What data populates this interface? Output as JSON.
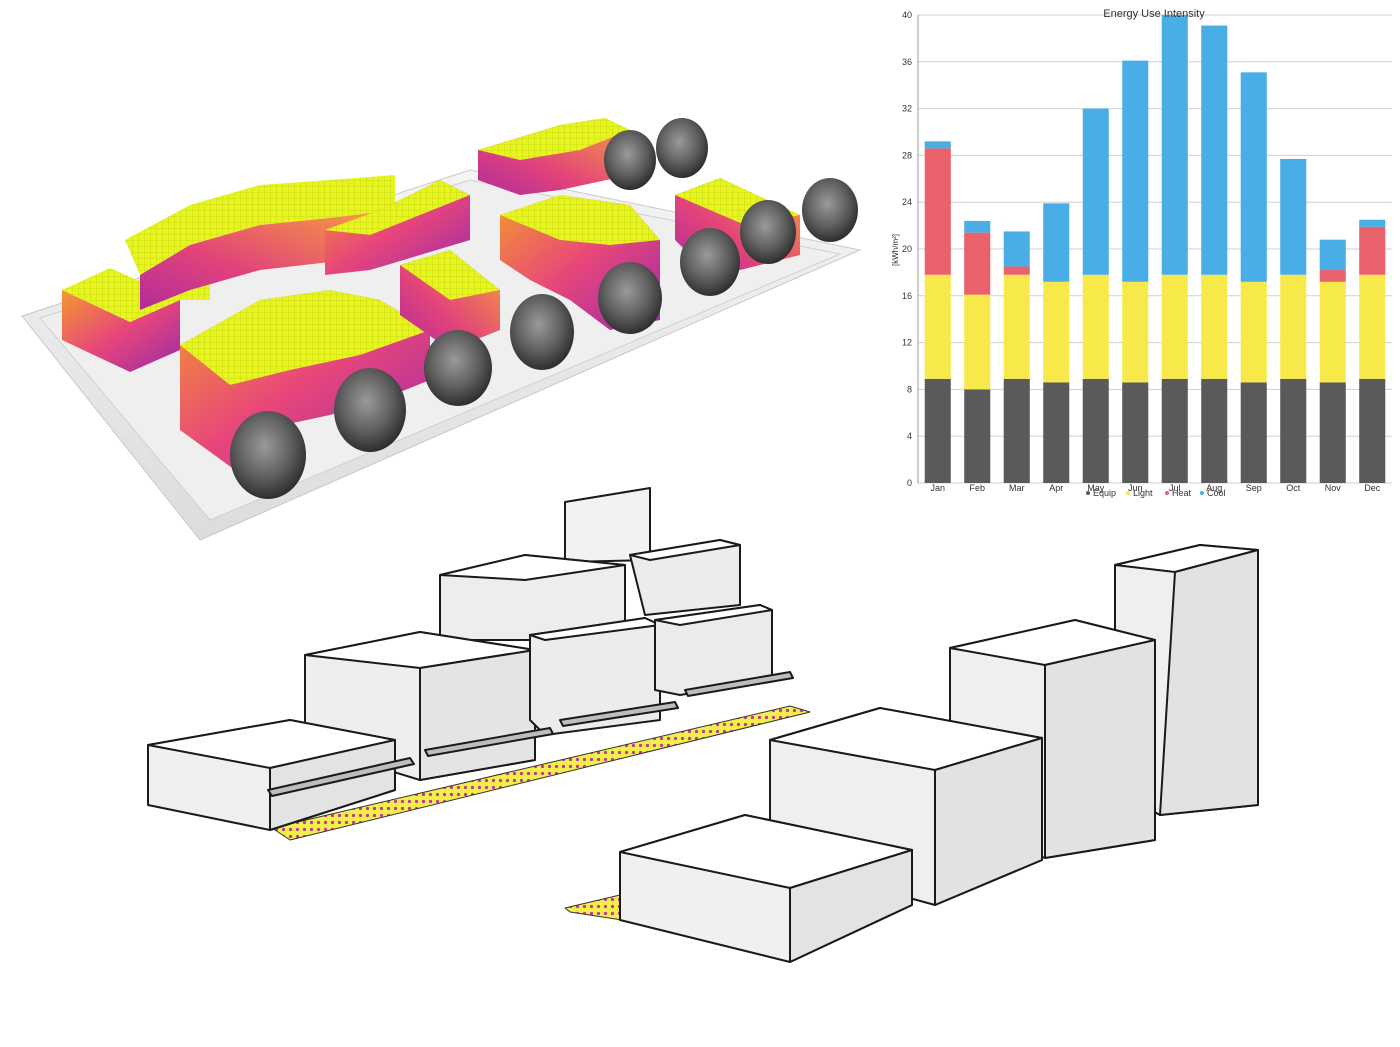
{
  "chart_data": {
    "type": "bar",
    "stacked": true,
    "title": "Energy Use Intensity",
    "ylabel": "[kWh/m²]",
    "xlabel": "",
    "ylim": [
      0,
      40
    ],
    "yticks": [
      0,
      4,
      8,
      12,
      16,
      20,
      24,
      28,
      32,
      36,
      40
    ],
    "grid": true,
    "legend": "bottom",
    "categories": [
      "Jan",
      "Feb",
      "Mar",
      "Apr",
      "May",
      "Jun",
      "Jul",
      "Aug",
      "Sep",
      "Oct",
      "Nov",
      "Dec"
    ],
    "series": [
      {
        "name": "Equip",
        "color": "#5a5a5a",
        "values": [
          8.9,
          8.0,
          8.9,
          8.6,
          8.9,
          8.6,
          8.9,
          8.9,
          8.6,
          8.9,
          8.6,
          8.9
        ]
      },
      {
        "name": "Light",
        "color": "#f7e94a",
        "values": [
          8.9,
          8.1,
          8.9,
          8.6,
          8.9,
          8.6,
          8.9,
          8.9,
          8.6,
          8.9,
          8.6,
          8.9
        ]
      },
      {
        "name": "Heat",
        "color": "#e8616b",
        "values": [
          10.8,
          5.3,
          0.7,
          0.0,
          0.0,
          0.0,
          0.0,
          0.0,
          0.0,
          0.0,
          1.0,
          4.1
        ]
      },
      {
        "name": "Cool",
        "color": "#4aaee6",
        "values": [
          0.6,
          1.0,
          3.0,
          6.7,
          14.2,
          18.9,
          22.2,
          21.3,
          17.9,
          9.9,
          2.6,
          0.6
        ]
      }
    ]
  }
}
